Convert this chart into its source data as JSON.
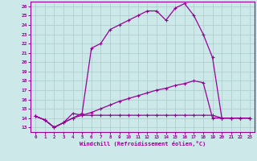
{
  "xlabel": "Windchill (Refroidissement éolien,°C)",
  "bg_color": "#cce8e8",
  "grid_color": "#aacccc",
  "line_color": "#990099",
  "xlim": [
    -0.5,
    23.5
  ],
  "ylim": [
    12.5,
    26.5
  ],
  "xticks": [
    0,
    1,
    2,
    3,
    4,
    5,
    6,
    7,
    8,
    9,
    10,
    11,
    12,
    13,
    14,
    15,
    16,
    17,
    18,
    19,
    20,
    21,
    22,
    23
  ],
  "yticks": [
    13,
    14,
    15,
    16,
    17,
    18,
    19,
    20,
    21,
    22,
    23,
    24,
    25,
    26
  ],
  "line1_x": [
    0,
    1,
    2,
    3,
    4,
    5,
    6,
    7,
    8,
    9,
    10,
    11,
    12,
    13,
    14,
    15,
    16,
    17,
    18,
    19,
    20,
    21,
    22,
    23
  ],
  "line1_y": [
    14.2,
    13.8,
    13.0,
    13.5,
    14.5,
    14.3,
    14.3,
    14.3,
    14.3,
    14.3,
    14.3,
    14.3,
    14.3,
    14.3,
    14.3,
    14.3,
    14.3,
    14.3,
    14.3,
    14.3,
    14.0,
    14.0,
    14.0,
    14.0
  ],
  "line2_x": [
    0,
    1,
    2,
    3,
    4,
    5,
    6,
    7,
    8,
    9,
    10,
    11,
    12,
    13,
    14,
    15,
    16,
    17,
    18,
    19,
    20,
    21,
    22,
    23
  ],
  "line2_y": [
    14.2,
    13.8,
    13.0,
    13.5,
    14.0,
    14.5,
    21.5,
    22.0,
    23.5,
    24.0,
    24.5,
    25.0,
    25.5,
    25.5,
    24.5,
    25.8,
    26.3,
    25.0,
    23.0,
    20.5,
    14.0,
    14.0,
    14.0,
    14.0
  ],
  "line3_x": [
    0,
    1,
    2,
    3,
    4,
    5,
    6,
    7,
    8,
    9,
    10,
    11,
    12,
    13,
    14,
    15,
    16,
    17,
    18,
    19,
    20,
    21,
    22,
    23
  ],
  "line3_y": [
    14.2,
    13.8,
    13.0,
    13.5,
    14.0,
    14.3,
    14.6,
    15.0,
    15.4,
    15.8,
    16.1,
    16.4,
    16.7,
    17.0,
    17.2,
    17.5,
    17.7,
    18.0,
    17.8,
    14.0,
    14.0,
    14.0,
    14.0,
    14.0
  ]
}
